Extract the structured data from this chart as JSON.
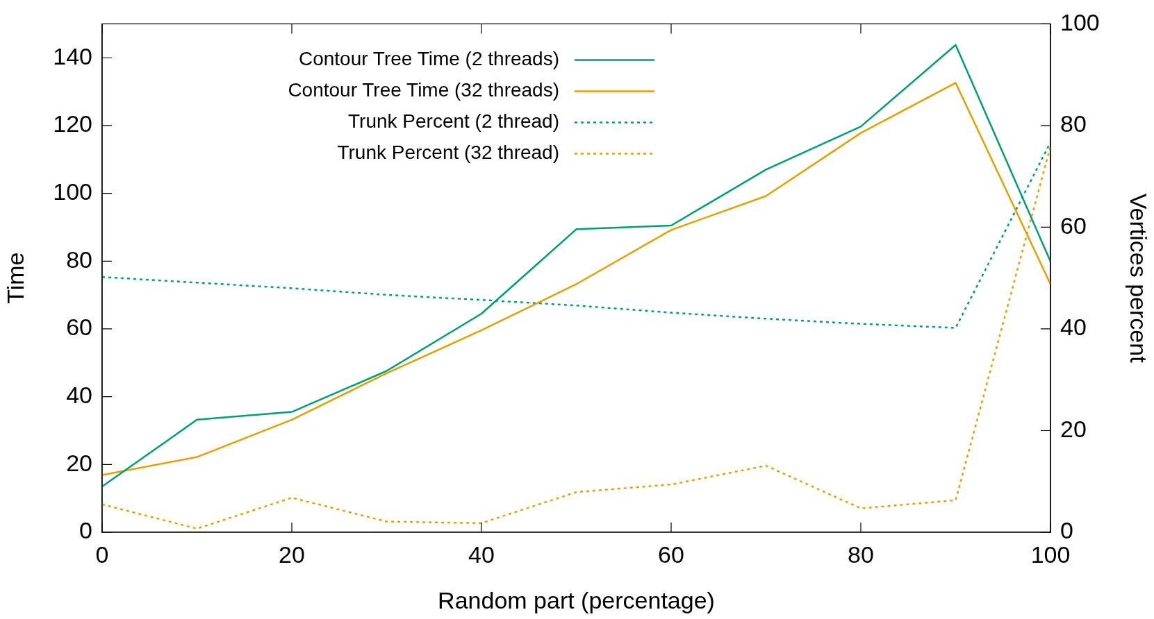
{
  "chart_data": {
    "type": "line",
    "xlabel": "Random part (percentage)",
    "ylabel": "Time",
    "y2label": "Vertices percent",
    "x": [
      0,
      10,
      20,
      30,
      40,
      50,
      60,
      70,
      80,
      90,
      100
    ],
    "xlim": [
      0,
      100
    ],
    "xticks": [
      0,
      20,
      40,
      60,
      80,
      100
    ],
    "ylim": [
      0,
      150
    ],
    "yticks": [
      0,
      20,
      40,
      60,
      80,
      100,
      120,
      140
    ],
    "y2lim": [
      0,
      100
    ],
    "y2ticks": [
      0,
      20,
      40,
      60,
      80,
      100
    ],
    "grid": false,
    "legend": "top",
    "marker": "none",
    "series": [
      {
        "name": "Contour Tree Time (2 threads)",
        "color": "#009e73",
        "line_style": "solid",
        "values": [
          13.5,
          33.2,
          35.5,
          47.6,
          64.5,
          89.4,
          90.5,
          107,
          119.7,
          143.8,
          79.9
        ]
      },
      {
        "name": "Contour Tree Time (32 threads)",
        "color": "#e69f00",
        "line_style": "solid",
        "values": [
          16.9,
          22.2,
          33.2,
          46.9,
          59.6,
          73.2,
          89.2,
          99.2,
          117.8,
          132.6,
          73.2
        ]
      },
      {
        "name": "Trunk Percent (2 thread)",
        "color": "#009e73",
        "line_style": "dotted",
        "axis": "y2",
        "values": [
          50.2,
          49.1,
          48.0,
          46.7,
          45.7,
          44.6,
          43.2,
          42.0,
          41.0,
          40.2,
          76.7
        ]
      },
      {
        "name": "Trunk Percent (32 thread)",
        "color": "#e69f00",
        "line_style": "dotted",
        "axis": "y2",
        "values": [
          5.5,
          0.7,
          6.8,
          2.1,
          1.8,
          7.9,
          9.4,
          13.1,
          4.7,
          6.3,
          75.9
        ]
      }
    ]
  }
}
